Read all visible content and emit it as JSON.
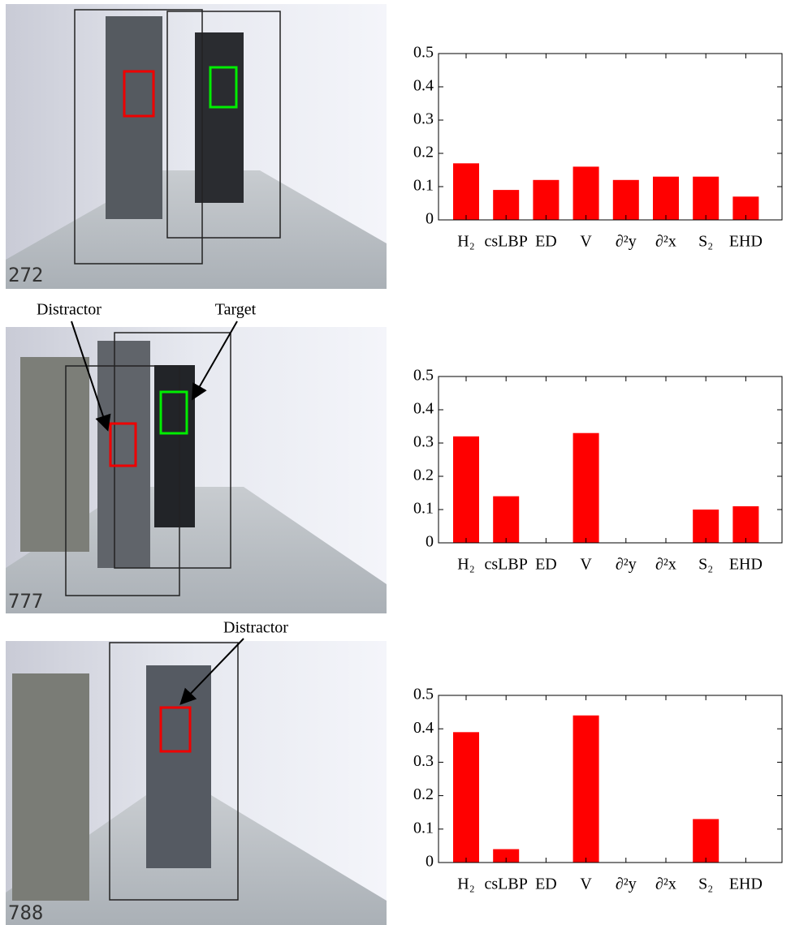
{
  "chart_data": [
    {
      "type": "bar",
      "categories": [
        "H₂",
        "csLBP",
        "ED",
        "V",
        "∂²y",
        "∂²x",
        "S₂",
        "EHD"
      ],
      "values": [
        0.17,
        0.09,
        0.12,
        0.16,
        0.12,
        0.13,
        0.13,
        0.07
      ],
      "color": "#ff0000",
      "ylim": [
        0,
        0.5
      ],
      "yticks": [
        0,
        0.1,
        0.2,
        0.3,
        0.4,
        0.5
      ]
    },
    {
      "type": "bar",
      "categories": [
        "H₂",
        "csLBP",
        "ED",
        "V",
        "∂²y",
        "∂²x",
        "S₂",
        "EHD"
      ],
      "values": [
        0.32,
        0.14,
        0,
        0.33,
        0,
        0,
        0.1,
        0.11
      ],
      "color": "#ff0000",
      "ylim": [
        0,
        0.5
      ],
      "yticks": [
        0,
        0.1,
        0.2,
        0.3,
        0.4,
        0.5
      ]
    },
    {
      "type": "bar",
      "categories": [
        "H₂",
        "csLBP",
        "ED",
        "V",
        "∂²y",
        "∂²x",
        "S₂",
        "EHD"
      ],
      "values": [
        0.39,
        0.04,
        0,
        0.44,
        0,
        0,
        0.13,
        0
      ],
      "color": "#ff0000",
      "ylim": [
        0,
        0.5
      ],
      "yticks": [
        0,
        0.1,
        0.2,
        0.3,
        0.4,
        0.5
      ]
    }
  ],
  "frames": [
    "272",
    "777",
    "788"
  ],
  "annotations": [
    "Distractor",
    "Target",
    "Distractor"
  ]
}
